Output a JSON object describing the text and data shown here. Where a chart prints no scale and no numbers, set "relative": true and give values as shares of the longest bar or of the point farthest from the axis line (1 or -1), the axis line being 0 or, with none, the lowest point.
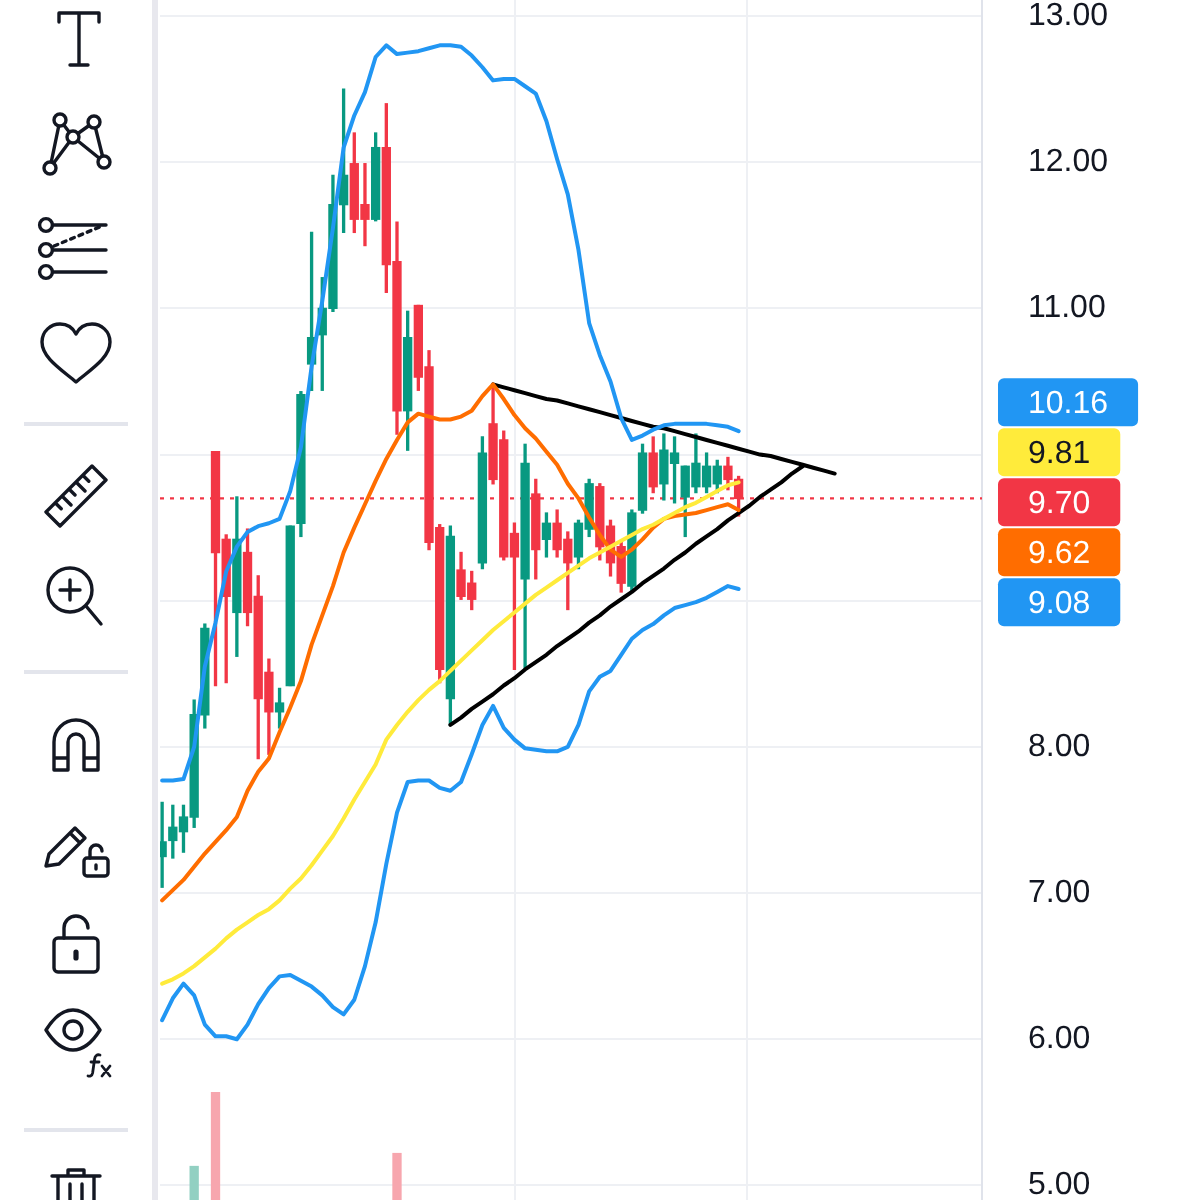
{
  "chart_data": [
    {
      "type": "candlestick",
      "categories": [
        null,
        null,
        null,
        null,
        null,
        null,
        null,
        null,
        null,
        null,
        null,
        null,
        null,
        null,
        null,
        null,
        null,
        null,
        null,
        null,
        null,
        null,
        null,
        null,
        null,
        null,
        null,
        null,
        null,
        null,
        null,
        null,
        null,
        null,
        null,
        null,
        null,
        null,
        null,
        null,
        null,
        null,
        null,
        null,
        null,
        null,
        null,
        null,
        null,
        null,
        null,
        null,
        null,
        null,
        null,
        null,
        null,
        null,
        null,
        null,
        null,
        null,
        null,
        null,
        null,
        null,
        null,
        null,
        null,
        null,
        null,
        null,
        null,
        null,
        null,
        null,
        null
      ],
      "ohlc": [
        [
          7.25,
          7.62,
          7.04,
          7.35
        ],
        [
          7.36,
          7.6,
          7.24,
          7.45
        ],
        [
          7.42,
          7.6,
          7.28,
          7.52
        ],
        [
          7.52,
          8.32,
          7.45,
          8.22
        ],
        [
          8.22,
          8.84,
          8.13,
          8.81
        ],
        [
          10.02,
          10.02,
          8.42,
          9.33
        ],
        [
          9.42,
          9.45,
          8.44,
          9.03
        ],
        [
          8.92,
          9.71,
          8.62,
          9.42
        ],
        [
          9.33,
          9.49,
          8.83,
          8.92
        ],
        [
          9.03,
          9.17,
          7.92,
          8.33
        ],
        [
          8.51,
          8.6,
          7.95,
          8.24
        ],
        [
          8.24,
          8.4,
          8.13,
          8.3
        ],
        [
          8.42,
          9.51,
          8.42,
          9.51
        ],
        [
          9.53,
          10.43,
          9.44,
          10.41
        ],
        [
          10.62,
          11.52,
          10.44,
          10.8
        ],
        [
          10.82,
          11.21,
          10.44,
          11.0
        ],
        [
          11.0,
          11.91,
          10.98,
          11.71
        ],
        [
          11.71,
          12.5,
          11.52,
          11.91
        ],
        [
          11.99,
          12.2,
          11.52,
          11.61
        ],
        [
          11.71,
          11.99,
          11.43,
          11.61
        ],
        [
          11.61,
          12.2,
          11.6,
          12.1
        ],
        [
          12.1,
          12.4,
          11.11,
          11.3
        ],
        [
          11.32,
          11.59,
          10.14,
          10.3
        ],
        [
          10.3,
          10.98,
          10.03,
          10.8
        ],
        [
          11.02,
          11.02,
          10.44,
          10.53
        ],
        [
          10.6,
          10.71,
          9.35,
          9.4
        ],
        [
          9.5,
          9.52,
          8.44,
          8.53
        ],
        [
          8.33,
          9.51,
          8.15,
          9.44
        ],
        [
          9.21,
          9.33,
          9.01,
          9.03
        ],
        [
          9.12,
          9.2,
          8.94,
          9.01
        ],
        [
          9.26,
          10.12,
          9.22,
          10.01
        ],
        [
          10.21,
          10.48,
          9.8,
          9.83
        ],
        [
          10.1,
          10.16,
          9.28,
          9.3
        ],
        [
          9.46,
          9.53,
          8.53,
          9.3
        ],
        [
          9.15,
          10.07,
          8.53,
          9.94
        ],
        [
          9.73,
          9.83,
          9.15,
          9.35
        ],
        [
          9.42,
          9.6,
          9.3,
          9.53
        ],
        [
          9.53,
          9.62,
          9.3,
          9.35
        ],
        [
          9.42,
          9.47,
          8.94,
          9.26
        ],
        [
          9.3,
          9.55,
          9.22,
          9.53
        ],
        [
          9.49,
          9.83,
          9.44,
          9.8
        ],
        [
          9.78,
          9.8,
          9.28,
          9.37
        ],
        [
          9.51,
          9.55,
          9.17,
          9.26
        ],
        [
          9.37,
          9.4,
          9.06,
          9.12
        ],
        [
          9.1,
          9.62,
          9.06,
          9.6
        ],
        [
          9.62,
          10.07,
          9.6,
          10.01
        ],
        [
          10.01,
          10.12,
          9.74,
          9.78
        ],
        [
          9.8,
          10.14,
          9.69,
          10.03
        ],
        [
          9.94,
          10.12,
          9.67,
          10.01
        ],
        [
          9.71,
          9.92,
          9.44,
          9.92
        ],
        [
          9.78,
          10.14,
          9.74,
          9.94
        ],
        [
          9.78,
          10.01,
          9.74,
          9.92
        ],
        [
          9.8,
          9.96,
          9.74,
          9.92
        ],
        [
          9.92,
          9.98,
          9.76,
          9.83
        ],
        [
          9.83,
          9.85,
          9.58,
          9.7
        ],
        null,
        null,
        null,
        null,
        null,
        null,
        null,
        null,
        null,
        null,
        null,
        null,
        null,
        null,
        null,
        null,
        null,
        null,
        null,
        null,
        null,
        null
      ],
      "colors": [
        "#089981",
        "#089981",
        "#089981",
        "#089981",
        "#089981",
        "#f23645",
        "#f23645",
        "#089981",
        "#f23645",
        "#f23645",
        "#f23645",
        "#089981",
        "#089981",
        "#089981",
        "#089981",
        "#089981",
        "#089981",
        "#089981",
        "#f23645",
        "#f23645",
        "#089981",
        "#f23645",
        "#f23645",
        "#089981",
        "#f23645",
        "#f23645",
        "#f23645",
        "#089981",
        "#f23645",
        "#f23645",
        "#089981",
        "#f23645",
        "#f23645",
        "#f23645",
        "#089981",
        "#f23645",
        "#089981",
        "#f23645",
        "#f23645",
        "#089981",
        "#089981",
        "#f23645",
        "#f23645",
        "#f23645",
        "#089981",
        "#089981",
        "#f23645",
        "#089981",
        "#089981",
        "#089981",
        "#089981",
        "#089981",
        "#089981",
        "#f23645",
        "#f23645",
        null,
        null,
        null,
        null,
        null,
        null,
        null,
        null,
        null,
        null,
        null,
        null,
        null,
        null,
        null,
        null,
        null,
        null,
        null,
        null,
        null,
        null
      ],
      "series": [
        {
          "type": "line",
          "color": "#2196f3",
          "values": [
            7.77,
            7.77,
            7.78,
            8.0,
            8.55,
            8.85,
            9.2,
            9.37,
            9.47,
            9.51,
            9.53,
            9.56,
            9.75,
            10.05,
            10.6,
            11.05,
            11.55,
            12.1,
            12.32,
            12.48,
            12.72,
            12.8,
            12.74,
            12.75,
            12.76,
            12.78,
            12.8,
            12.8,
            12.79,
            12.73,
            12.65,
            12.56,
            12.57,
            12.57,
            12.52,
            12.47,
            12.28,
            12.02,
            11.78,
            11.4,
            10.9,
            10.68,
            10.5,
            10.25,
            10.1,
            10.13,
            10.17,
            10.2,
            10.21,
            10.21,
            10.21,
            10.21,
            10.2,
            10.19,
            10.16,
            null,
            null,
            null,
            null,
            null,
            null,
            null,
            null,
            null,
            null,
            null,
            null,
            null,
            null,
            null,
            null,
            null,
            null,
            null,
            null,
            null,
            null
          ]
        },
        {
          "type": "line",
          "color": "#ffeb3b",
          "values": [
            6.38,
            6.41,
            6.45,
            6.5,
            6.56,
            6.62,
            6.69,
            6.75,
            6.8,
            6.85,
            6.89,
            6.95,
            7.03,
            7.1,
            7.19,
            7.29,
            7.39,
            7.51,
            7.64,
            7.76,
            7.88,
            8.05,
            8.15,
            8.24,
            8.32,
            8.39,
            8.45,
            8.52,
            8.59,
            8.66,
            8.73,
            8.8,
            8.86,
            8.92,
            8.98,
            9.04,
            9.09,
            9.14,
            9.19,
            9.24,
            9.29,
            9.33,
            9.37,
            9.41,
            9.45,
            9.49,
            9.52,
            9.56,
            9.6,
            9.64,
            9.67,
            9.71,
            9.75,
            9.79,
            9.81,
            null,
            null,
            null,
            null,
            null,
            null,
            null,
            null,
            null,
            null,
            null,
            null,
            null,
            null,
            null,
            null,
            null,
            null,
            null,
            null,
            null,
            null
          ]
        },
        {
          "type": "line",
          "color": "#ff6d00",
          "values": [
            6.95,
            7.02,
            7.09,
            7.18,
            7.27,
            7.35,
            7.43,
            7.52,
            7.7,
            7.83,
            7.92,
            8.1,
            8.27,
            8.45,
            8.7,
            8.9,
            9.1,
            9.33,
            9.5,
            9.66,
            9.82,
            9.97,
            10.1,
            10.22,
            10.28,
            10.26,
            10.24,
            10.24,
            10.26,
            10.3,
            10.4,
            10.48,
            10.38,
            10.27,
            10.18,
            10.11,
            10.02,
            9.93,
            9.8,
            9.7,
            9.57,
            9.45,
            9.35,
            9.3,
            9.35,
            9.42,
            9.5,
            9.56,
            9.58,
            9.59,
            9.6,
            9.62,
            9.64,
            9.66,
            9.62,
            null,
            null,
            null,
            null,
            null,
            null,
            null,
            null,
            null,
            null,
            null,
            null,
            null,
            null,
            null,
            null,
            null,
            null,
            null,
            null,
            null,
            null
          ]
        },
        {
          "type": "line",
          "color": "#2196f3",
          "values": [
            6.13,
            6.28,
            6.38,
            6.3,
            6.1,
            6.02,
            6.02,
            6.0,
            6.1,
            6.24,
            6.35,
            6.43,
            6.44,
            6.4,
            6.36,
            6.3,
            6.22,
            6.17,
            6.27,
            6.5,
            6.8,
            7.2,
            7.55,
            7.76,
            7.77,
            7.77,
            7.72,
            7.7,
            7.76,
            7.95,
            8.15,
            8.28,
            8.13,
            8.05,
            7.99,
            7.98,
            7.97,
            7.97,
            8.0,
            8.15,
            8.38,
            8.48,
            8.52,
            8.63,
            8.74,
            8.8,
            8.84,
            8.9,
            8.95,
            8.97,
            8.99,
            9.02,
            9.06,
            9.1,
            9.08,
            null,
            null,
            null,
            null,
            null,
            null,
            null,
            null,
            null,
            null,
            null,
            null,
            null,
            null,
            null,
            null,
            null,
            null,
            null,
            null,
            null,
            null
          ]
        },
        {
          "type": "line",
          "color": "#000000",
          "values": [
            null,
            null,
            null,
            null,
            null,
            null,
            null,
            null,
            null,
            null,
            null,
            null,
            null,
            null,
            null,
            null,
            null,
            null,
            null,
            null,
            null,
            null,
            null,
            null,
            null,
            null,
            null,
            null,
            null,
            null,
            null,
            10.48,
            10.46,
            10.44,
            10.42,
            10.4,
            10.38,
            10.37,
            10.35,
            10.33,
            10.31,
            10.29,
            10.27,
            10.25,
            10.23,
            10.21,
            10.19,
            10.18,
            10.16,
            10.14,
            10.12,
            10.1,
            10.08,
            10.06,
            10.04,
            10.02,
            10.0,
            9.99,
            9.97,
            9.95,
            9.93,
            9.91,
            9.89,
            9.87,
            null,
            null,
            null,
            null,
            null,
            null,
            null,
            null,
            null,
            null,
            null,
            null,
            null
          ]
        },
        {
          "type": "line",
          "color": "#000000",
          "values": [
            null,
            null,
            null,
            null,
            null,
            null,
            null,
            null,
            null,
            null,
            null,
            null,
            null,
            null,
            null,
            null,
            null,
            null,
            null,
            null,
            null,
            null,
            null,
            null,
            null,
            null,
            null,
            8.15,
            8.2,
            8.26,
            8.31,
            8.36,
            8.42,
            8.47,
            8.53,
            8.58,
            8.63,
            8.69,
            8.74,
            8.79,
            8.85,
            8.9,
            8.96,
            9.01,
            9.06,
            9.12,
            9.17,
            9.22,
            9.28,
            9.33,
            9.39,
            9.44,
            9.49,
            9.55,
            9.6,
            9.65,
            9.71,
            9.76,
            9.81,
            9.87,
            9.92,
            null,
            null,
            null,
            null,
            null,
            null,
            null,
            null,
            null,
            null,
            null,
            null,
            null,
            null,
            null,
            null
          ]
        }
      ],
      "annotations": [
        "10.16",
        "9.81",
        "9.62",
        "9.08"
      ],
      "ref_lines": [
        {
          "axis": "y",
          "value": 9.7,
          "label": "9.70",
          "color": "#f23645",
          "line_style": "dotted"
        }
      ],
      "ylim": [
        4.9,
        13.11
      ],
      "yticks": [
        {
          "value": 5,
          "label": "5.00"
        },
        {
          "value": 6,
          "label": "6.00"
        },
        {
          "value": 7,
          "label": "7.00"
        },
        {
          "value": 8,
          "label": "8.00"
        },
        {
          "value": 9,
          "label": null
        },
        {
          "value": 10,
          "label": null
        },
        {
          "value": 11,
          "label": "11.00"
        },
        {
          "value": 12,
          "label": "12.00"
        },
        {
          "value": 13,
          "label": "13.00"
        }
      ],
      "grid": "y"
    },
    {
      "type": "bar",
      "relative": true,
      "categories": [
        null,
        null,
        null,
        null,
        null,
        null,
        null,
        null,
        null,
        null,
        null,
        null,
        null,
        null,
        null,
        null,
        null,
        null,
        null,
        null,
        null,
        null,
        null,
        null,
        null,
        null,
        null,
        null,
        null,
        null,
        null,
        null,
        null,
        null,
        null,
        null,
        null,
        null,
        null,
        null,
        null,
        null,
        null,
        null,
        null,
        null,
        null,
        null,
        null,
        null,
        null,
        null,
        null,
        null,
        null,
        null,
        null,
        null,
        null,
        null,
        null,
        null,
        null,
        null,
        null,
        null,
        null,
        null,
        null,
        null,
        null,
        null,
        null,
        null,
        null,
        null,
        null
      ],
      "values": [
        null,
        null,
        null,
        0.31,
        null,
        1,
        null,
        null,
        null,
        null,
        null,
        null,
        null,
        null,
        null,
        null,
        null,
        null,
        null,
        null,
        null,
        null,
        0.43,
        null,
        null,
        null,
        null,
        null,
        null,
        null,
        null,
        null,
        null,
        null,
        null,
        null,
        null,
        null,
        null,
        null,
        null,
        null,
        null,
        null,
        null,
        null,
        null,
        null,
        null,
        null,
        null,
        null,
        null,
        null,
        null,
        null,
        null,
        null,
        null,
        null,
        null,
        null,
        null,
        null,
        null,
        null,
        null,
        null,
        null,
        null,
        null,
        null,
        null,
        null,
        null,
        null,
        null
      ],
      "colors": [
        null,
        null,
        null,
        "#92d0c2",
        null,
        "#f7a6ae",
        null,
        null,
        null,
        null,
        null,
        null,
        null,
        null,
        null,
        null,
        null,
        null,
        null,
        null,
        null,
        null,
        "#f7a6ae",
        null,
        null,
        null,
        null,
        null,
        null,
        null,
        null,
        null,
        null,
        null,
        null,
        null,
        null,
        null,
        null,
        null,
        null,
        null,
        null,
        null,
        null,
        null,
        null,
        null,
        null,
        null,
        null,
        null,
        null,
        null,
        null,
        null,
        null,
        null,
        null,
        null,
        null,
        null,
        null,
        null,
        null,
        null,
        null,
        null,
        null,
        null,
        null,
        null,
        null,
        null,
        null,
        null,
        null
      ]
    }
  ]
}
